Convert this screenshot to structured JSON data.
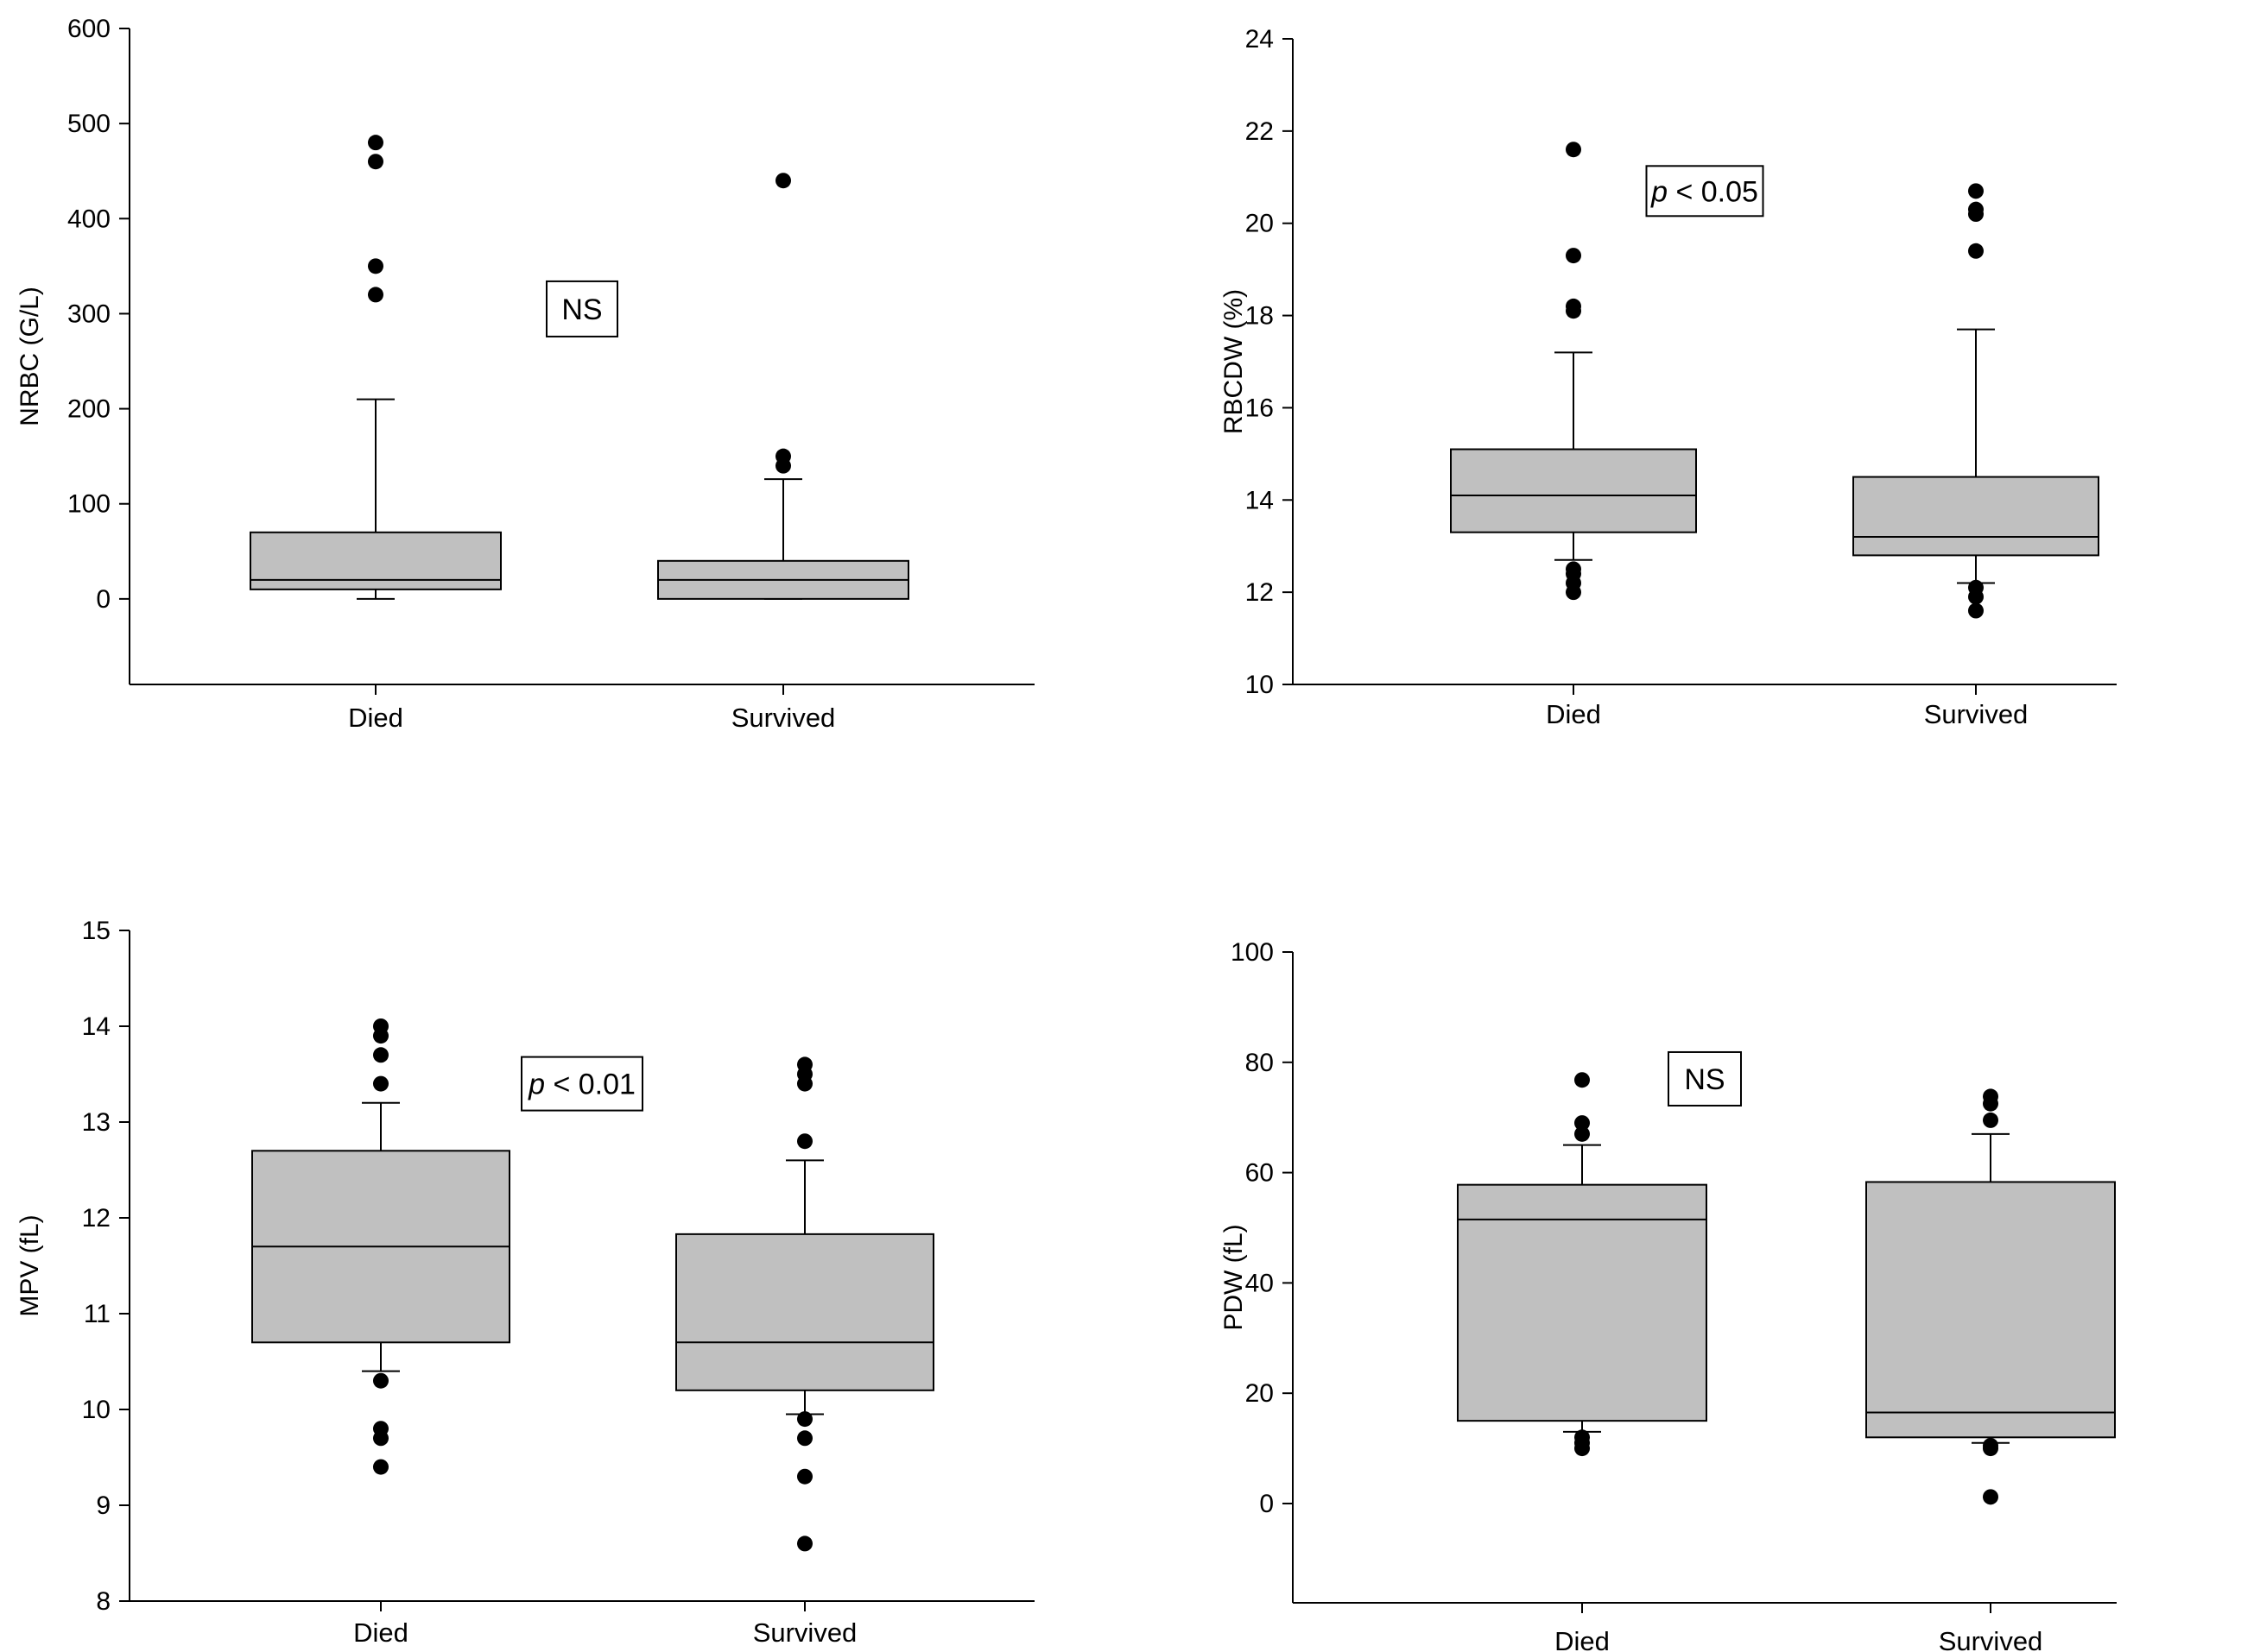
{
  "chart_data": [
    {
      "type": "box",
      "ylabel": "NRBC (G/L)",
      "ylim": [
        -90,
        600
      ],
      "yticks": [
        0,
        100,
        200,
        300,
        400,
        500,
        600
      ],
      "categories": [
        "Died",
        "Survived"
      ],
      "boxes": [
        {
          "category": "Died",
          "whisker_low": 0,
          "q1": 10,
          "median": 20,
          "q3": 70,
          "whisker_high": 210,
          "outliers": [
            480,
            460,
            350,
            320
          ]
        },
        {
          "category": "Survived",
          "whisker_low": 0,
          "q1": 0,
          "median": 20,
          "q3": 40,
          "whisker_high": 126,
          "outliers": [
            440,
            150,
            140
          ]
        }
      ],
      "annotation": {
        "italic": "",
        "text": "NS",
        "x": 0.5,
        "y": 305
      }
    },
    {
      "type": "box",
      "ylabel": "RBCDW (%)",
      "ylim": [
        10,
        24
      ],
      "yticks": [
        10,
        12,
        14,
        16,
        18,
        20,
        22,
        24
      ],
      "categories": [
        "Died",
        "Survived"
      ],
      "boxes": [
        {
          "category": "Died",
          "whisker_low": 12.7,
          "q1": 13.3,
          "median": 14.1,
          "q3": 15.1,
          "whisker_high": 17.2,
          "outliers": [
            21.6,
            19.3,
            18.2,
            18.1,
            12.5,
            12.4,
            12.2,
            12.0
          ]
        },
        {
          "category": "Survived",
          "whisker_low": 12.2,
          "q1": 12.8,
          "median": 13.2,
          "q3": 14.5,
          "whisker_high": 17.7,
          "outliers": [
            20.7,
            20.3,
            20.2,
            19.4,
            12.1,
            11.9,
            11.6
          ]
        }
      ],
      "annotation": {
        "italic": "p",
        "text": " < 0.05",
        "x": 0.5,
        "y": 20.7
      }
    },
    {
      "type": "box",
      "ylabel": "MPV (fL)",
      "ylim": [
        8,
        15
      ],
      "yticks": [
        8,
        9,
        10,
        11,
        12,
        13,
        14,
        15
      ],
      "categories": [
        "Died",
        "Survived"
      ],
      "boxes": [
        {
          "category": "Died",
          "whisker_low": 10.4,
          "q1": 10.7,
          "median": 11.7,
          "q3": 12.7,
          "whisker_high": 13.2,
          "outliers": [
            14.0,
            13.9,
            13.7,
            13.4,
            10.3,
            9.8,
            9.7,
            9.4
          ]
        },
        {
          "category": "Survived",
          "whisker_low": 9.95,
          "q1": 10.2,
          "median": 10.7,
          "q3": 11.83,
          "whisker_high": 12.6,
          "outliers": [
            13.6,
            13.5,
            13.4,
            12.8,
            9.9,
            9.7,
            9.3,
            8.6
          ]
        }
      ],
      "annotation": {
        "italic": "p",
        "text": " < 0.01",
        "x": 0.5,
        "y": 13.4
      }
    },
    {
      "type": "box",
      "ylabel": "PDW (fL)",
      "ylim": [
        -18,
        100
      ],
      "yticks": [
        0,
        20,
        40,
        60,
        80,
        100
      ],
      "categories": [
        "Died",
        "Survived"
      ],
      "boxes": [
        {
          "category": "Died",
          "whisker_low": 13,
          "q1": 15,
          "median": 51.5,
          "q3": 57.8,
          "whisker_high": 65,
          "outliers": [
            76.8,
            69,
            67,
            12,
            11,
            10
          ]
        },
        {
          "category": "Survived",
          "whisker_low": 11,
          "q1": 12,
          "median": 16.5,
          "q3": 58.3,
          "whisker_high": 67,
          "outliers": [
            73.8,
            72.5,
            69.5,
            10.5,
            10,
            1.2
          ]
        }
      ],
      "annotation": {
        "italic": "",
        "text": "NS",
        "x": 0.5,
        "y": 77
      }
    }
  ]
}
